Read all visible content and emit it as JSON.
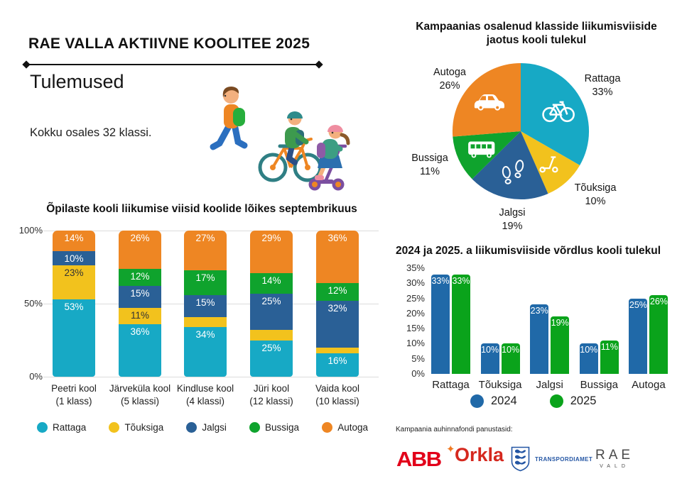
{
  "header": {
    "title": "RAE VALLA AKTIIVNE KOOLITEE 2025",
    "subtitle": "Tulemused",
    "note": "Kokku osales 32 klassi.",
    "illustration": "kids-walking-cycling-scooting"
  },
  "palette": {
    "rattaga": "#17A9C5",
    "touksiga": "#F2C21D",
    "jalgsi": "#2A6096",
    "bussiga": "#0FA32D",
    "autoga": "#EE8623",
    "year2024": "#2069A8",
    "year2025": "#0AA31B"
  },
  "chart_data": [
    {
      "id": "pie",
      "type": "pie",
      "title": "Kampaanias osalenud klasside liikumisviiside jaotus kooli tulekul",
      "labels": [
        "Rattaga",
        "Tõuksiga",
        "Jalgsi",
        "Bussiga",
        "Autoga"
      ],
      "values": [
        33,
        10,
        19,
        11,
        26
      ],
      "colors": [
        "#17A9C5",
        "#F2C21D",
        "#2A6096",
        "#0FA32D",
        "#EE8623"
      ],
      "icons": [
        "bicycle-icon",
        "scooter-icon",
        "footprints-icon",
        "bus-icon",
        "car-icon"
      ],
      "start_angle_deg": 0,
      "direction": "clockwise",
      "value_suffix": "%",
      "legend_position": "labels-around-pie"
    },
    {
      "id": "stacked",
      "type": "bar",
      "variant": "stacked",
      "title": "Õpilaste kooli liikumise viisid koolide lõikes septembrikuus",
      "categories": [
        [
          "Peetri kool",
          "(1 klass)"
        ],
        [
          "Järveküla kool",
          "(5 klassi)"
        ],
        [
          "Kindluse kool",
          "(4 klassi)"
        ],
        [
          "Jüri kool",
          "(12 klassi)"
        ],
        [
          "Vaida kool",
          "(10 klassi)"
        ]
      ],
      "series": [
        {
          "name": "Rattaga",
          "values": [
            53,
            36,
            34,
            25,
            16
          ]
        },
        {
          "name": "Tõuksiga",
          "values": [
            23,
            11,
            7,
            7,
            4
          ]
        },
        {
          "name": "Jalgsi",
          "values": [
            10,
            15,
            15,
            25,
            32
          ]
        },
        {
          "name": "Bussiga",
          "values": [
            0,
            12,
            17,
            14,
            12
          ]
        },
        {
          "name": "Autoga",
          "values": [
            14,
            26,
            27,
            29,
            36
          ]
        }
      ],
      "colors": [
        "#17A9C5",
        "#F2C21D",
        "#2A6096",
        "#0FA32D",
        "#EE8623"
      ],
      "yticks": [
        "100%",
        "50%",
        "0%"
      ],
      "ylim": [
        0,
        100
      ],
      "value_suffix": "%",
      "min_label_value": 10,
      "grid": true,
      "legend": [
        "Rattaga",
        "Tõuksiga",
        "Jalgsi",
        "Bussiga",
        "Autoga"
      ],
      "legend_position": "bottom"
    },
    {
      "id": "grouped",
      "type": "bar",
      "variant": "grouped",
      "title": "2024 ja 2025. a liikumisviiside võrdlus kooli tulekul",
      "categories": [
        "Rattaga",
        "Tõuksiga",
        "Jalgsi",
        "Bussiga",
        "Autoga"
      ],
      "series": [
        {
          "name": "2024",
          "values": [
            33,
            10,
            23,
            10,
            25
          ]
        },
        {
          "name": "2025",
          "values": [
            33,
            10,
            19,
            11,
            26
          ]
        }
      ],
      "colors": [
        "#2069A8",
        "#0AA31B"
      ],
      "yticks": [
        "35%",
        "30%",
        "25%",
        "20%",
        "15%",
        "10%",
        "5%",
        "0%"
      ],
      "ylim": [
        0,
        35
      ],
      "value_suffix": "%",
      "grid": false,
      "legend": [
        "2024",
        "2025"
      ],
      "legend_position": "bottom"
    }
  ],
  "footer": {
    "label": "Kampaania auhinnafondi panustasid:",
    "sponsors": {
      "abb": "ABB",
      "orkla": "Orkla",
      "transpordiamet": "TRANSPORDIAMET",
      "rae_line1": "RAE",
      "rae_line2": "VALD"
    }
  }
}
